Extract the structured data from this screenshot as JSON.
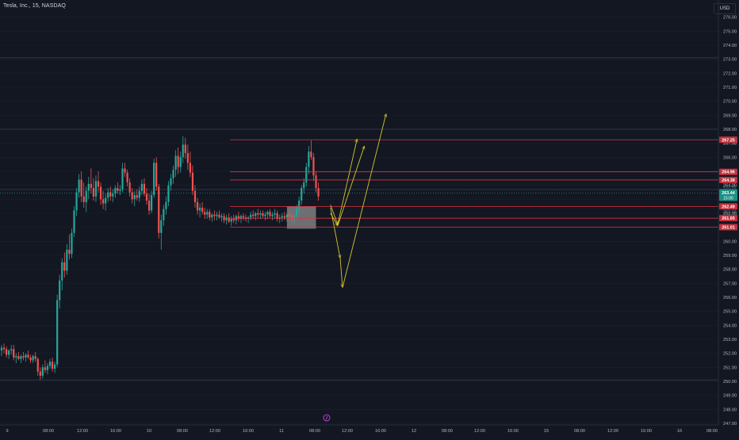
{
  "header": {
    "title": "Tesla, Inc., 15, NASDAQ",
    "currency": "USD"
  },
  "colors": {
    "background": "#131722",
    "up": "#26a69a",
    "down": "#ef5350",
    "level_line": "#e0313f",
    "projection": "#d4c62c",
    "axis_text": "#b2b5be",
    "gray_box": "#8e8e8e"
  },
  "chart_data": {
    "type": "candlestick",
    "symbol": "TSLA",
    "timeframe": "15",
    "exchange": "NASDAQ",
    "ylim": [
      247,
      277
    ],
    "y_ticks": [
      247,
      248,
      249,
      250,
      251,
      252,
      253,
      254,
      255,
      256,
      257,
      258,
      259,
      260,
      261,
      262,
      263,
      264,
      265,
      266,
      267,
      268,
      269,
      270,
      271,
      272,
      273,
      274,
      275,
      276
    ],
    "x_ticks": [
      "9",
      "08:00",
      "12:00",
      "16:00",
      "10",
      "08:00",
      "12:00",
      "16:00",
      "11",
      "08:00",
      "12:00",
      "16:00",
      "12",
      "08:00",
      "12:00",
      "16:00",
      "15",
      "08:00",
      "12:00",
      "16:00",
      "16",
      "08:00"
    ],
    "price_levels": [
      {
        "price": 267.25,
        "label": "267.25"
      },
      {
        "price": 264.96,
        "label": "264.96"
      },
      {
        "price": 264.38,
        "label": "264.38"
      },
      {
        "price": 262.49,
        "label": "262.49"
      },
      {
        "price": 261.65,
        "label": "261.65"
      },
      {
        "price": 261.01,
        "label": "261.01"
      }
    ],
    "reference_lines": [
      268.0,
      273.1,
      263.7,
      250.1
    ],
    "current_price": {
      "price": 263.44,
      "label": "263.44",
      "countdown": "15:00"
    },
    "hidden_levels": [
      {
        "price": 267.05,
        "label": "267.05"
      },
      {
        "price": 264.2,
        "label": "264.20"
      },
      {
        "price": 262.1,
        "label": "262.10"
      },
      {
        "price": 263.9,
        "label": "263.90"
      }
    ],
    "consolidation_box": {
      "x_start": 118,
      "x_end": 130,
      "y_low": 260.9,
      "y_high": 262.5
    },
    "projections": [
      {
        "name": "upper-path",
        "points": [
          [
            136,
            262.6
          ],
          [
            139,
            261.2
          ],
          [
            147,
            267.3
          ]
        ]
      },
      {
        "name": "mid-path",
        "points": [
          [
            136,
            262.0
          ],
          [
            139,
            261.1
          ],
          [
            150,
            266.8
          ]
        ]
      },
      {
        "name": "lower-path",
        "points": [
          [
            136,
            262.4
          ],
          [
            140,
            258.8
          ],
          [
            141,
            256.7
          ],
          [
            159,
            269.1
          ]
        ]
      }
    ],
    "candles": [
      {
        "o": 252.2,
        "h": 252.6,
        "l": 251.8,
        "c": 252.4
      },
      {
        "o": 252.4,
        "h": 252.7,
        "l": 252.0,
        "c": 252.3
      },
      {
        "o": 252.3,
        "h": 252.5,
        "l": 251.7,
        "c": 251.9
      },
      {
        "o": 251.9,
        "h": 252.3,
        "l": 251.6,
        "c": 252.2
      },
      {
        "o": 252.2,
        "h": 252.6,
        "l": 251.9,
        "c": 252.3
      },
      {
        "o": 252.3,
        "h": 252.6,
        "l": 251.5,
        "c": 251.7
      },
      {
        "o": 251.7,
        "h": 252.0,
        "l": 251.3,
        "c": 251.8
      },
      {
        "o": 251.8,
        "h": 252.1,
        "l": 251.5,
        "c": 251.6
      },
      {
        "o": 251.6,
        "h": 251.9,
        "l": 251.3,
        "c": 251.8
      },
      {
        "o": 251.8,
        "h": 252.1,
        "l": 251.5,
        "c": 251.7
      },
      {
        "o": 251.7,
        "h": 252.0,
        "l": 251.4,
        "c": 251.9
      },
      {
        "o": 251.9,
        "h": 252.2,
        "l": 251.6,
        "c": 251.7
      },
      {
        "o": 251.7,
        "h": 251.9,
        "l": 251.3,
        "c": 251.5
      },
      {
        "o": 251.5,
        "h": 251.9,
        "l": 251.3,
        "c": 251.8
      },
      {
        "o": 251.8,
        "h": 252.1,
        "l": 251.4,
        "c": 251.6
      },
      {
        "o": 251.6,
        "h": 251.7,
        "l": 250.4,
        "c": 250.7
      },
      {
        "o": 250.7,
        "h": 251.0,
        "l": 250.1,
        "c": 250.4
      },
      {
        "o": 250.4,
        "h": 251.2,
        "l": 250.2,
        "c": 251.0
      },
      {
        "o": 251.0,
        "h": 251.5,
        "l": 250.6,
        "c": 250.8
      },
      {
        "o": 250.8,
        "h": 251.3,
        "l": 250.5,
        "c": 251.1
      },
      {
        "o": 251.1,
        "h": 251.6,
        "l": 250.9,
        "c": 251.4
      },
      {
        "o": 251.4,
        "h": 251.7,
        "l": 250.7,
        "c": 250.9
      },
      {
        "o": 250.9,
        "h": 251.4,
        "l": 250.6,
        "c": 251.2
      },
      {
        "o": 251.2,
        "h": 256.2,
        "l": 251.0,
        "c": 255.8
      },
      {
        "o": 255.8,
        "h": 257.6,
        "l": 255.2,
        "c": 257.2
      },
      {
        "o": 257.2,
        "h": 258.8,
        "l": 256.5,
        "c": 258.5
      },
      {
        "o": 258.5,
        "h": 259.2,
        "l": 257.4,
        "c": 257.9
      },
      {
        "o": 257.9,
        "h": 259.8,
        "l": 257.6,
        "c": 259.4
      },
      {
        "o": 259.4,
        "h": 260.5,
        "l": 258.7,
        "c": 259.1
      },
      {
        "o": 259.1,
        "h": 260.9,
        "l": 258.8,
        "c": 260.6
      },
      {
        "o": 260.6,
        "h": 262.5,
        "l": 260.3,
        "c": 262.2
      },
      {
        "o": 262.2,
        "h": 263.8,
        "l": 261.8,
        "c": 263.5
      },
      {
        "o": 263.5,
        "h": 264.8,
        "l": 263.1,
        "c": 264.4
      },
      {
        "o": 264.4,
        "h": 265.0,
        "l": 262.8,
        "c": 263.2
      },
      {
        "o": 263.2,
        "h": 264.2,
        "l": 262.4,
        "c": 262.8
      },
      {
        "o": 262.8,
        "h": 263.9,
        "l": 262.1,
        "c": 263.6
      },
      {
        "o": 263.6,
        "h": 264.6,
        "l": 263.0,
        "c": 264.1
      },
      {
        "o": 264.1,
        "h": 265.2,
        "l": 263.4,
        "c": 263.8
      },
      {
        "o": 263.8,
        "h": 264.5,
        "l": 262.9,
        "c": 263.2
      },
      {
        "o": 263.2,
        "h": 264.7,
        "l": 262.8,
        "c": 264.3
      },
      {
        "o": 264.3,
        "h": 265.0,
        "l": 263.5,
        "c": 263.9
      },
      {
        "o": 263.9,
        "h": 264.2,
        "l": 262.6,
        "c": 263.0
      },
      {
        "o": 263.0,
        "h": 263.6,
        "l": 262.3,
        "c": 262.7
      },
      {
        "o": 262.7,
        "h": 263.4,
        "l": 262.2,
        "c": 263.1
      },
      {
        "o": 263.1,
        "h": 263.8,
        "l": 262.8,
        "c": 263.5
      },
      {
        "o": 263.5,
        "h": 263.9,
        "l": 262.9,
        "c": 263.2
      },
      {
        "o": 263.2,
        "h": 263.7,
        "l": 262.8,
        "c": 263.4
      },
      {
        "o": 263.4,
        "h": 264.0,
        "l": 263.1,
        "c": 263.8
      },
      {
        "o": 263.8,
        "h": 264.2,
        "l": 263.4,
        "c": 263.6
      },
      {
        "o": 263.6,
        "h": 264.0,
        "l": 263.3,
        "c": 263.7
      },
      {
        "o": 263.7,
        "h": 265.6,
        "l": 263.5,
        "c": 265.2
      },
      {
        "o": 265.2,
        "h": 265.6,
        "l": 264.6,
        "c": 264.9
      },
      {
        "o": 264.9,
        "h": 265.1,
        "l": 263.9,
        "c": 264.2
      },
      {
        "o": 264.2,
        "h": 264.5,
        "l": 263.2,
        "c": 263.5
      },
      {
        "o": 263.5,
        "h": 263.8,
        "l": 262.7,
        "c": 263.0
      },
      {
        "o": 263.0,
        "h": 263.6,
        "l": 262.5,
        "c": 263.3
      },
      {
        "o": 263.3,
        "h": 263.7,
        "l": 262.9,
        "c": 263.1
      },
      {
        "o": 263.1,
        "h": 263.9,
        "l": 262.8,
        "c": 263.6
      },
      {
        "o": 263.6,
        "h": 264.4,
        "l": 263.3,
        "c": 264.1
      },
      {
        "o": 264.1,
        "h": 264.5,
        "l": 263.2,
        "c": 263.4
      },
      {
        "o": 263.4,
        "h": 263.8,
        "l": 262.6,
        "c": 262.9
      },
      {
        "o": 262.9,
        "h": 263.4,
        "l": 261.9,
        "c": 262.2
      },
      {
        "o": 262.2,
        "h": 263.6,
        "l": 262.0,
        "c": 263.3
      },
      {
        "o": 263.3,
        "h": 265.9,
        "l": 263.1,
        "c": 265.6
      },
      {
        "o": 265.6,
        "h": 266.0,
        "l": 263.6,
        "c": 263.9
      },
      {
        "o": 263.9,
        "h": 264.1,
        "l": 260.2,
        "c": 260.6
      },
      {
        "o": 260.6,
        "h": 261.9,
        "l": 259.4,
        "c": 261.5
      },
      {
        "o": 261.5,
        "h": 262.6,
        "l": 261.1,
        "c": 262.3
      },
      {
        "o": 262.3,
        "h": 263.2,
        "l": 261.9,
        "c": 262.8
      },
      {
        "o": 262.8,
        "h": 264.3,
        "l": 262.5,
        "c": 264.0
      },
      {
        "o": 264.0,
        "h": 264.8,
        "l": 263.6,
        "c": 264.5
      },
      {
        "o": 264.5,
        "h": 265.4,
        "l": 264.1,
        "c": 265.1
      },
      {
        "o": 265.1,
        "h": 266.5,
        "l": 264.6,
        "c": 266.1
      },
      {
        "o": 266.1,
        "h": 266.7,
        "l": 264.8,
        "c": 265.3
      },
      {
        "o": 265.3,
        "h": 266.4,
        "l": 264.9,
        "c": 266.0
      },
      {
        "o": 266.0,
        "h": 267.5,
        "l": 265.6,
        "c": 266.9
      },
      {
        "o": 266.9,
        "h": 267.4,
        "l": 265.9,
        "c": 266.3
      },
      {
        "o": 266.3,
        "h": 266.9,
        "l": 265.1,
        "c": 265.6
      },
      {
        "o": 265.6,
        "h": 266.4,
        "l": 264.6,
        "c": 264.9
      },
      {
        "o": 264.9,
        "h": 265.4,
        "l": 263.3,
        "c": 263.6
      },
      {
        "o": 263.6,
        "h": 264.0,
        "l": 262.4,
        "c": 262.8
      },
      {
        "o": 262.8,
        "h": 263.1,
        "l": 261.9,
        "c": 262.2
      },
      {
        "o": 262.2,
        "h": 262.7,
        "l": 261.7,
        "c": 262.4
      },
      {
        "o": 262.4,
        "h": 262.8,
        "l": 261.9,
        "c": 262.1
      },
      {
        "o": 262.1,
        "h": 262.4,
        "l": 261.6,
        "c": 261.9
      },
      {
        "o": 261.9,
        "h": 262.3,
        "l": 261.6,
        "c": 262.1
      },
      {
        "o": 262.1,
        "h": 262.3,
        "l": 261.5,
        "c": 261.7
      },
      {
        "o": 261.7,
        "h": 262.0,
        "l": 261.4,
        "c": 261.9
      },
      {
        "o": 261.9,
        "h": 262.2,
        "l": 261.5,
        "c": 261.8
      },
      {
        "o": 261.8,
        "h": 262.1,
        "l": 261.5,
        "c": 261.9
      },
      {
        "o": 261.9,
        "h": 262.2,
        "l": 261.6,
        "c": 261.7
      },
      {
        "o": 261.7,
        "h": 262.0,
        "l": 261.4,
        "c": 261.8
      },
      {
        "o": 261.8,
        "h": 262.0,
        "l": 261.3,
        "c": 261.5
      },
      {
        "o": 261.5,
        "h": 261.9,
        "l": 261.2,
        "c": 261.7
      },
      {
        "o": 261.7,
        "h": 262.0,
        "l": 261.3,
        "c": 261.4
      },
      {
        "o": 261.4,
        "h": 261.8,
        "l": 261.1,
        "c": 261.6
      },
      {
        "o": 261.6,
        "h": 261.9,
        "l": 261.3,
        "c": 261.5
      },
      {
        "o": 261.5,
        "h": 261.9,
        "l": 261.2,
        "c": 261.8
      },
      {
        "o": 261.8,
        "h": 262.1,
        "l": 261.4,
        "c": 261.6
      },
      {
        "o": 261.6,
        "h": 261.9,
        "l": 261.3,
        "c": 261.8
      },
      {
        "o": 261.8,
        "h": 262.0,
        "l": 261.5,
        "c": 261.7
      },
      {
        "o": 261.7,
        "h": 261.9,
        "l": 261.4,
        "c": 261.6
      },
      {
        "o": 261.6,
        "h": 261.8,
        "l": 261.3,
        "c": 261.7
      },
      {
        "o": 261.7,
        "h": 262.1,
        "l": 261.5,
        "c": 261.9
      },
      {
        "o": 261.9,
        "h": 262.2,
        "l": 261.6,
        "c": 261.8
      },
      {
        "o": 261.8,
        "h": 262.1,
        "l": 261.5,
        "c": 262.0
      },
      {
        "o": 262.0,
        "h": 262.3,
        "l": 261.7,
        "c": 261.9
      },
      {
        "o": 261.9,
        "h": 262.2,
        "l": 261.6,
        "c": 262.0
      },
      {
        "o": 262.0,
        "h": 262.2,
        "l": 261.7,
        "c": 261.8
      },
      {
        "o": 261.8,
        "h": 262.1,
        "l": 261.5,
        "c": 261.9
      },
      {
        "o": 261.9,
        "h": 262.2,
        "l": 261.6,
        "c": 262.1
      },
      {
        "o": 262.1,
        "h": 262.3,
        "l": 261.7,
        "c": 261.8
      },
      {
        "o": 261.8,
        "h": 262.1,
        "l": 261.5,
        "c": 261.9
      },
      {
        "o": 261.9,
        "h": 262.3,
        "l": 261.6,
        "c": 262.0
      },
      {
        "o": 262.0,
        "h": 262.2,
        "l": 261.4,
        "c": 261.6
      },
      {
        "o": 261.6,
        "h": 261.9,
        "l": 261.3,
        "c": 261.7
      },
      {
        "o": 261.7,
        "h": 262.0,
        "l": 261.4,
        "c": 261.8
      },
      {
        "o": 261.8,
        "h": 262.1,
        "l": 261.5,
        "c": 261.7
      },
      {
        "o": 261.7,
        "h": 262.0,
        "l": 261.4,
        "c": 261.9
      },
      {
        "o": 261.9,
        "h": 262.2,
        "l": 261.6,
        "c": 261.8
      },
      {
        "o": 261.8,
        "h": 262.0,
        "l": 261.4,
        "c": 261.6
      },
      {
        "o": 261.6,
        "h": 261.9,
        "l": 261.2,
        "c": 261.8
      },
      {
        "o": 261.8,
        "h": 262.6,
        "l": 261.6,
        "c": 262.3
      },
      {
        "o": 262.3,
        "h": 263.2,
        "l": 262.0,
        "c": 262.9
      },
      {
        "o": 262.9,
        "h": 264.0,
        "l": 262.6,
        "c": 263.8
      },
      {
        "o": 263.8,
        "h": 264.5,
        "l": 263.4,
        "c": 264.2
      },
      {
        "o": 264.2,
        "h": 265.6,
        "l": 263.9,
        "c": 265.3
      },
      {
        "o": 265.3,
        "h": 266.8,
        "l": 264.8,
        "c": 266.4
      },
      {
        "o": 266.4,
        "h": 267.2,
        "l": 265.8,
        "c": 266.0
      },
      {
        "o": 266.0,
        "h": 266.3,
        "l": 264.3,
        "c": 264.7
      },
      {
        "o": 264.7,
        "h": 265.0,
        "l": 263.5,
        "c": 263.8
      },
      {
        "o": 263.8,
        "h": 264.2,
        "l": 262.9,
        "c": 263.2
      }
    ]
  }
}
